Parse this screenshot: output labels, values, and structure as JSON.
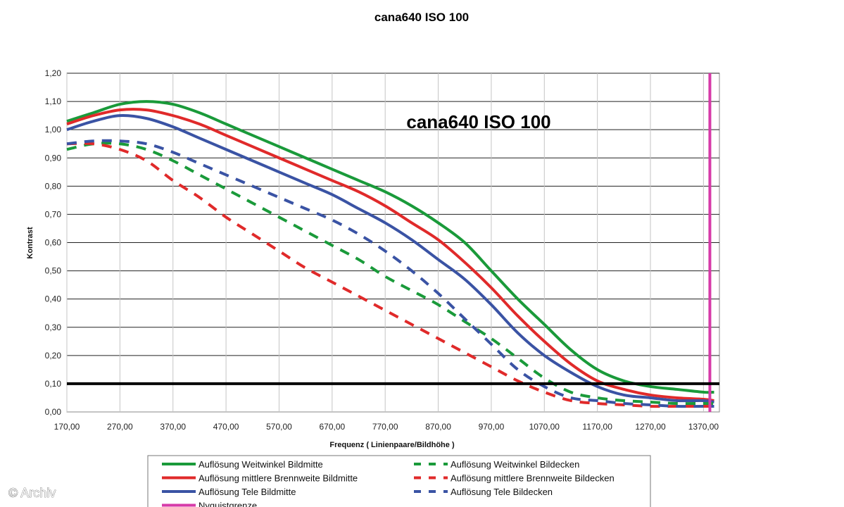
{
  "chart_data": {
    "type": "line",
    "title": "cana640 ISO 100",
    "inner_title": "cana640 ISO 100",
    "xlabel": "Frequenz ( Linienpaare/Bildhöhe )",
    "ylabel": "Kontrast",
    "xlim": [
      170,
      1400
    ],
    "ylim": [
      0,
      1.2
    ],
    "x_ticks": [
      "170,00",
      "270,00",
      "370,00",
      "470,00",
      "570,00",
      "670,00",
      "770,00",
      "870,00",
      "970,00",
      "1070,00",
      "1170,00",
      "1270,00",
      "1370,00"
    ],
    "y_ticks": [
      "0,00",
      "0,10",
      "0,20",
      "0,30",
      "0,40",
      "0,50",
      "0,60",
      "0,70",
      "0,80",
      "0,90",
      "1,00",
      "1,10",
      "1,20"
    ],
    "grid": "horizontal",
    "legend_position": "bottom",
    "x": [
      170,
      220,
      270,
      320,
      370,
      420,
      470,
      520,
      570,
      620,
      670,
      720,
      770,
      820,
      870,
      920,
      970,
      1020,
      1070,
      1120,
      1170,
      1220,
      1270,
      1320,
      1370,
      1390
    ],
    "series": [
      {
        "name": "Auflösung Weitwinkel Bildmitte",
        "color": "#1a9a3a",
        "dash": "solid",
        "values": [
          1.03,
          1.06,
          1.09,
          1.1,
          1.09,
          1.06,
          1.02,
          0.98,
          0.94,
          0.9,
          0.86,
          0.82,
          0.78,
          0.73,
          0.67,
          0.6,
          0.5,
          0.4,
          0.31,
          0.22,
          0.15,
          0.11,
          0.09,
          0.08,
          0.07,
          0.07
        ]
      },
      {
        "name": "Auflösung mittlere Brennweite Bildmitte",
        "color": "#e02a2a",
        "dash": "solid",
        "values": [
          1.02,
          1.05,
          1.07,
          1.07,
          1.05,
          1.02,
          0.98,
          0.94,
          0.9,
          0.86,
          0.82,
          0.78,
          0.73,
          0.67,
          0.61,
          0.53,
          0.44,
          0.34,
          0.25,
          0.17,
          0.11,
          0.08,
          0.06,
          0.05,
          0.045,
          0.04
        ]
      },
      {
        "name": "Auflösung Tele Bildmitte",
        "color": "#3a53a4",
        "dash": "solid",
        "values": [
          1.0,
          1.03,
          1.05,
          1.04,
          1.01,
          0.97,
          0.93,
          0.89,
          0.85,
          0.81,
          0.77,
          0.72,
          0.67,
          0.61,
          0.54,
          0.47,
          0.38,
          0.28,
          0.2,
          0.14,
          0.09,
          0.06,
          0.05,
          0.04,
          0.04,
          0.035
        ]
      },
      {
        "name": "Auflösung Weitwinkel Bildecken",
        "color": "#1a9a3a",
        "dash": "dashed",
        "values": [
          0.93,
          0.95,
          0.95,
          0.93,
          0.89,
          0.84,
          0.79,
          0.74,
          0.69,
          0.64,
          0.59,
          0.54,
          0.48,
          0.43,
          0.38,
          0.32,
          0.26,
          0.19,
          0.12,
          0.07,
          0.05,
          0.04,
          0.035,
          0.03,
          0.03,
          0.03
        ]
      },
      {
        "name": "Auflösung mittlere Brennweite Bildecken",
        "color": "#e02a2a",
        "dash": "dashed",
        "values": [
          0.95,
          0.95,
          0.93,
          0.89,
          0.82,
          0.76,
          0.69,
          0.63,
          0.57,
          0.51,
          0.46,
          0.41,
          0.36,
          0.31,
          0.26,
          0.21,
          0.16,
          0.11,
          0.07,
          0.04,
          0.03,
          0.025,
          0.02,
          0.02,
          0.02,
          0.02
        ]
      },
      {
        "name": "Auflösung Tele Bildecken",
        "color": "#3a53a4",
        "dash": "dashed",
        "values": [
          0.95,
          0.96,
          0.96,
          0.95,
          0.92,
          0.88,
          0.84,
          0.8,
          0.76,
          0.72,
          0.68,
          0.63,
          0.57,
          0.5,
          0.42,
          0.33,
          0.24,
          0.15,
          0.09,
          0.05,
          0.04,
          0.03,
          0.025,
          0.02,
          0.02,
          0.02
        ]
      }
    ],
    "reference_lines": [
      {
        "name": "Nyquistgrenze",
        "color": "#d63aa8",
        "orientation": "vertical",
        "x": 1382
      },
      {
        "name": "",
        "color": "#000000",
        "orientation": "horizontal",
        "y": 0.1
      }
    ],
    "annotations": [
      "© Archiv"
    ]
  }
}
